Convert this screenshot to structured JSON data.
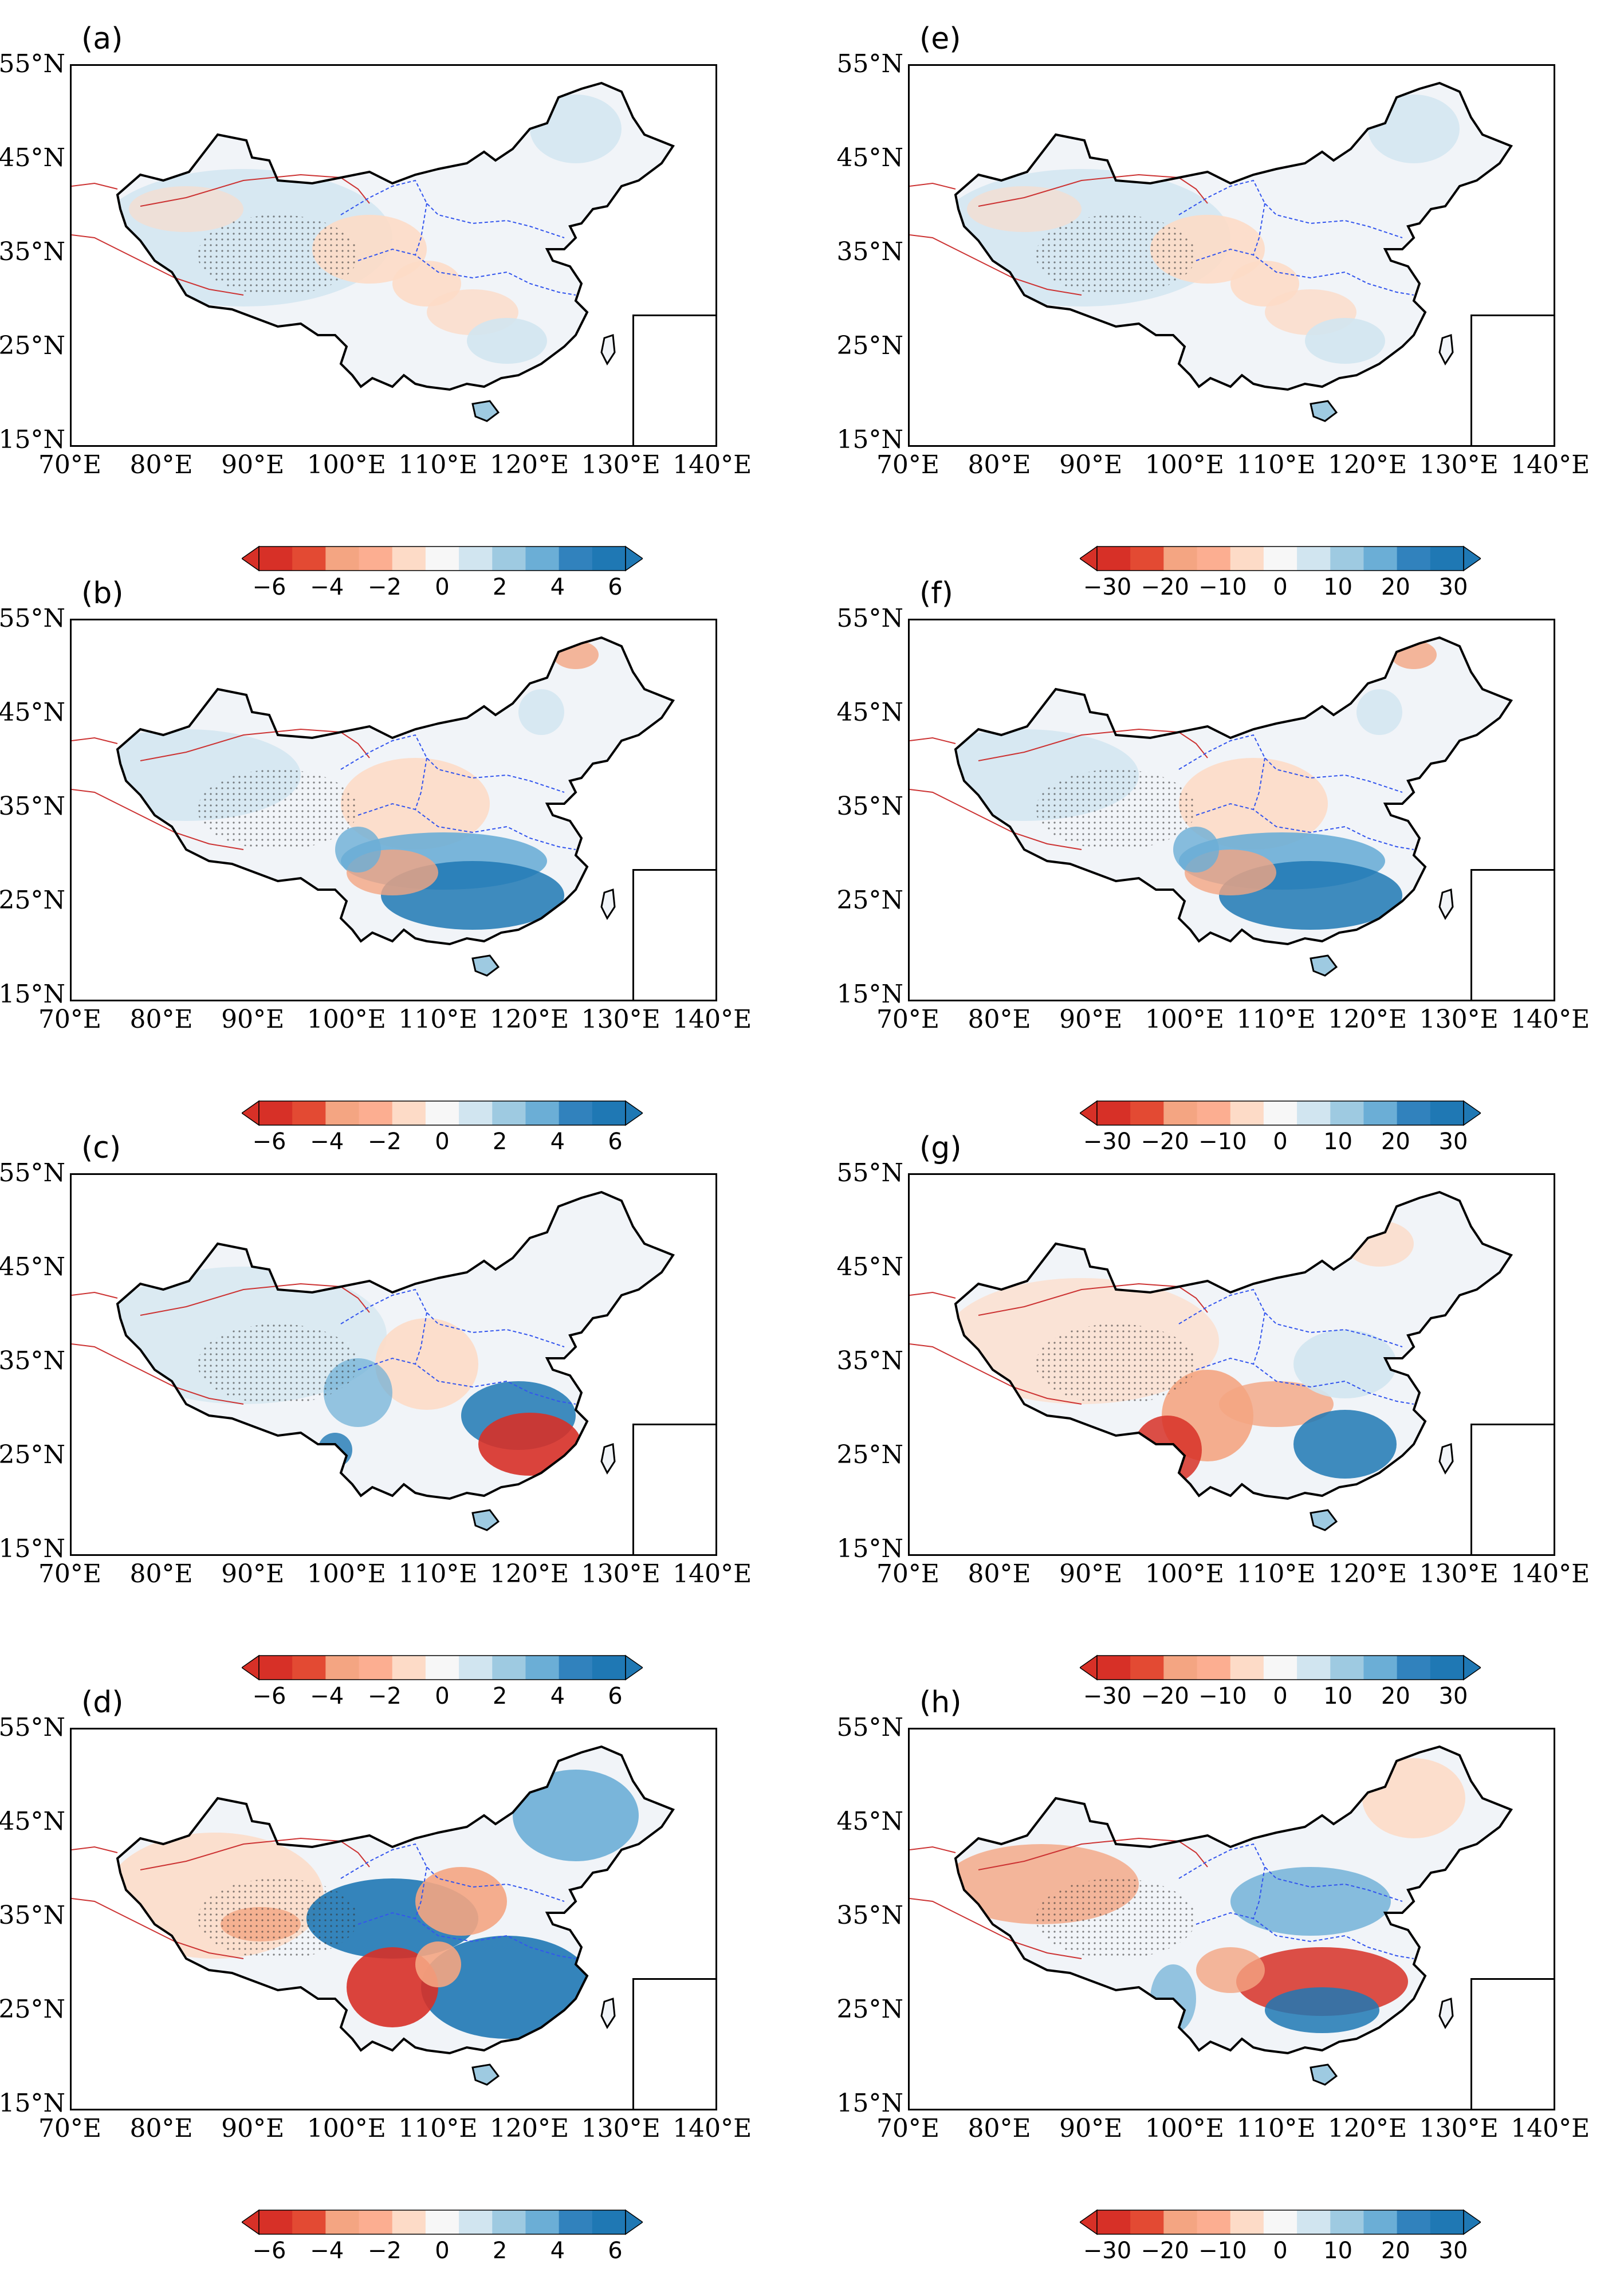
{
  "figure": {
    "axes": {
      "lat_labels": [
        "55°N",
        "45°N",
        "35°N",
        "25°N",
        "15°N"
      ],
      "lon_labels": [
        "70°E",
        "80°E",
        "90°E",
        "100°E",
        "110°E",
        "120°E",
        "130°E",
        "140°E"
      ]
    },
    "colorbars": {
      "left": {
        "ticks": [
          "−6",
          "−4",
          "−2",
          "0",
          "2",
          "4",
          "6"
        ],
        "range": [
          -6,
          6
        ],
        "levels": 12
      },
      "right": {
        "ticks": [
          "−30",
          "−20",
          "−10",
          "0",
          "10",
          "20",
          "30"
        ],
        "range": [
          -30,
          30
        ],
        "levels": 12
      }
    },
    "colors": {
      "neg_strong": "#d73027",
      "neg_mid": "#f4a582",
      "neg_weak": "#fddbc7",
      "neutral": "#f7f7f7",
      "pos_weak": "#d1e5f0",
      "pos_mid": "#6baed6",
      "pos_strong": "#1f78b4",
      "river_yellow": "#cc3333",
      "river_blue": "#3355ee",
      "border": "#000000"
    },
    "panels": [
      {
        "label": "(a)",
        "column": "left",
        "colorbar": "left",
        "pattern": "weak"
      },
      {
        "label": "(b)",
        "column": "left",
        "colorbar": "left",
        "pattern": "south-wet"
      },
      {
        "label": "(c)",
        "column": "left",
        "colorbar": "left",
        "pattern": "southeast-dry"
      },
      {
        "label": "(d)",
        "column": "left",
        "colorbar": "left",
        "pattern": "strong"
      },
      {
        "label": "(e)",
        "column": "right",
        "colorbar": "right",
        "pattern": "weak"
      },
      {
        "label": "(f)",
        "column": "right",
        "colorbar": "right",
        "pattern": "south-wet"
      },
      {
        "label": "(g)",
        "column": "right",
        "colorbar": "right",
        "pattern": "southwest-dry"
      },
      {
        "label": "(h)",
        "column": "right",
        "colorbar": "right",
        "pattern": "mixed"
      }
    ]
  }
}
